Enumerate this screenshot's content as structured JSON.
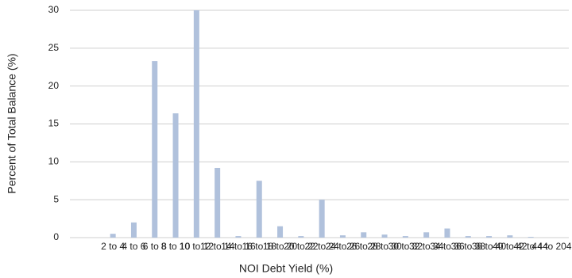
{
  "chart_data": {
    "type": "bar",
    "x_label": "NOI Debt Yield (%)",
    "y_label": "Percent of Total Balance (%)",
    "categories": [
      "2 to 4",
      "4 to 6",
      "6 to 8",
      "8 to 10",
      "10 to 12",
      "12 to 14",
      "14 to 16",
      "16 to 18",
      "18 to 20",
      "20 to 22",
      "22 to 24",
      "24 to 26",
      "26 to 28",
      "28 to 30",
      "30 to 32",
      "32 to 34",
      "34 to 36",
      "36 to 38",
      "38 to 40",
      "40 to 42",
      "42 to 44",
      "44 to 204"
    ],
    "values": [
      0.5,
      2,
      23.3,
      16.4,
      30,
      9.2,
      0.2,
      7.5,
      1.5,
      0.2,
      5,
      0.3,
      0.7,
      0.4,
      0.2,
      0.7,
      1.2,
      0.2,
      0.2,
      0.3,
      0.1,
      0
    ],
    "color": "#b0c1dc",
    "ylim": [
      0,
      30
    ],
    "yticks": [
      0,
      5,
      10,
      15,
      20,
      25,
      30
    ],
    "grid": true
  }
}
